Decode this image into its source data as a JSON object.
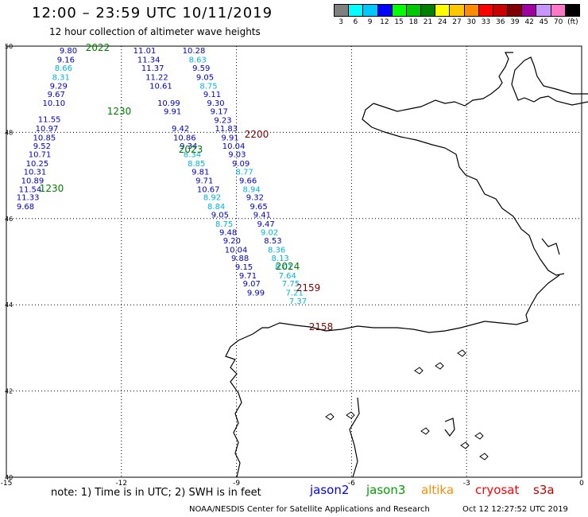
{
  "header": {
    "title": "12:00 – 23:59 UTC 10/11/2019",
    "subtitle": "12 hour collection of altimeter wave heights"
  },
  "color_scale": {
    "labels": [
      "3",
      "6",
      "9",
      "12",
      "15",
      "18",
      "21",
      "24",
      "27",
      "30",
      "33",
      "36",
      "39",
      "42",
      "45",
      "70",
      "(ft)"
    ],
    "colors": [
      "#808080",
      "#00ffff",
      "#00c8ff",
      "#0000ff",
      "#00ff00",
      "#00c800",
      "#008000",
      "#ffff00",
      "#ffc800",
      "#ff8c00",
      "#ff0000",
      "#c80000",
      "#800000",
      "#a000a0",
      "#c896ff",
      "#ff78c8",
      "#000000"
    ]
  },
  "axes": {
    "lon_labels": [
      "-15",
      "-12",
      "-9",
      "-6",
      "-3",
      "0"
    ],
    "lat_labels": [
      "50",
      "48",
      "46",
      "44",
      "42",
      "40"
    ]
  },
  "tracks": {
    "jason3_a": {
      "time_label": "2022",
      "points": [
        {
          "v": "9.80",
          "lat": 49.91,
          "c": "#0000c8"
        },
        {
          "v": "9.16",
          "lat": 49.7,
          "c": "#0000c8"
        },
        {
          "v": "8.66",
          "lat": 49.5,
          "c": "#00b4dc"
        },
        {
          "v": "8.31",
          "lat": 49.29,
          "c": "#00b4dc"
        },
        {
          "v": "9.29",
          "lat": 49.09,
          "c": "#0000c8"
        },
        {
          "v": "9.67",
          "lat": 48.89,
          "c": "#0000c8"
        },
        {
          "v": "10.10",
          "lat": 48.69,
          "c": "#0000c8"
        },
        {
          "v": "11.55",
          "lat": 48.31,
          "c": "#0000c8"
        },
        {
          "v": "10.97",
          "lat": 48.1,
          "c": "#0000c8"
        },
        {
          "v": "10.85",
          "lat": 47.89,
          "c": "#0000c8"
        },
        {
          "v": "9.52",
          "lat": 47.69,
          "c": "#0000c8"
        },
        {
          "v": "10.71",
          "lat": 47.5,
          "c": "#0000c8"
        },
        {
          "v": "10.25",
          "lat": 47.29,
          "c": "#0000c8"
        },
        {
          "v": "10.31",
          "lat": 47.09,
          "c": "#0000c8"
        },
        {
          "v": "10.89",
          "lat": 46.89,
          "c": "#0000c8"
        },
        {
          "v": "11.54",
          "lat": 46.69,
          "c": "#0000c8"
        },
        {
          "v": "11.33",
          "lat": 46.5,
          "c": "#0000c8"
        },
        {
          "v": "9.68",
          "lat": 46.29,
          "c": "#0000c8"
        }
      ],
      "end_label": "1230"
    },
    "jason3_b": {
      "time_label": "2023",
      "points": [
        {
          "v": "11.01",
          "lat": 49.91,
          "c": "#0000c8"
        },
        {
          "v": "11.34",
          "lat": 49.7,
          "c": "#0000c8"
        },
        {
          "v": "11.37",
          "lat": 49.5,
          "c": "#0000c8"
        },
        {
          "v": "11.22",
          "lat": 49.29,
          "c": "#0000c8"
        },
        {
          "v": "10.61",
          "lat": 49.09,
          "c": "#0000c8"
        },
        {
          "v": "10.99",
          "lat": 48.69,
          "c": "#0000c8"
        },
        {
          "v": "9.91",
          "lat": 48.5,
          "c": "#0000c8"
        },
        {
          "v": "9.42",
          "lat": 48.1,
          "c": "#0000c8"
        },
        {
          "v": "10.86",
          "lat": 47.89,
          "c": "#0000c8"
        },
        {
          "v": "9.34",
          "lat": 47.69,
          "c": "#0000c8"
        },
        {
          "v": "8.34",
          "lat": 47.5,
          "c": "#00b4dc"
        },
        {
          "v": "8.85",
          "lat": 47.29,
          "c": "#00b4dc"
        },
        {
          "v": "9.81",
          "lat": 47.09,
          "c": "#0000c8"
        },
        {
          "v": "9.71",
          "lat": 46.89,
          "c": "#0000c8"
        },
        {
          "v": "10.67",
          "lat": 46.69,
          "c": "#0000c8"
        },
        {
          "v": "8.92",
          "lat": 46.5,
          "c": "#00b4dc"
        },
        {
          "v": "8.84",
          "lat": 46.29,
          "c": "#00b4dc"
        },
        {
          "v": "9.05",
          "lat": 46.1,
          "c": "#0000c8"
        },
        {
          "v": "8.75",
          "lat": 45.89,
          "c": "#00b4dc"
        },
        {
          "v": "9.48",
          "lat": 45.69,
          "c": "#0000c8"
        },
        {
          "v": "9.20",
          "lat": 45.5,
          "c": "#0000c8"
        },
        {
          "v": "10.04",
          "lat": 45.29,
          "c": "#0000c8"
        },
        {
          "v": "9.88",
          "lat": 45.09,
          "c": "#0000c8"
        },
        {
          "v": "9.15",
          "lat": 44.89,
          "c": "#0000c8"
        },
        {
          "v": "9.71",
          "lat": 44.69,
          "c": "#0000c8"
        },
        {
          "v": "9.07",
          "lat": 44.5,
          "c": "#0000c8"
        },
        {
          "v": "9.99",
          "lat": 44.29,
          "c": "#0000c8"
        }
      ],
      "mid_label": "1230"
    },
    "jason2": {
      "time_label": "2200",
      "points": [
        {
          "v": "10.28",
          "lat": 49.91,
          "c": "#0000c8"
        },
        {
          "v": "8.63",
          "lat": 49.7,
          "c": "#00b4dc"
        },
        {
          "v": "9.59",
          "lat": 49.5,
          "c": "#0000c8"
        },
        {
          "v": "9.05",
          "lat": 49.29,
          "c": "#0000c8"
        },
        {
          "v": "8.75",
          "lat": 49.09,
          "c": "#00b4dc"
        },
        {
          "v": "9.11",
          "lat": 48.89,
          "c": "#0000c8"
        },
        {
          "v": "9.30",
          "lat": 48.69,
          "c": "#0000c8"
        },
        {
          "v": "9.17",
          "lat": 48.5,
          "c": "#0000c8"
        },
        {
          "v": "9.23",
          "lat": 48.29,
          "c": "#0000c8"
        },
        {
          "v": "11.83",
          "lat": 48.1,
          "c": "#0000c8"
        },
        {
          "v": "9.91",
          "lat": 47.89,
          "c": "#0000c8"
        },
        {
          "v": "10.04",
          "lat": 47.69,
          "c": "#0000c8"
        },
        {
          "v": "9.03",
          "lat": 47.5,
          "c": "#0000c8"
        },
        {
          "v": "9.09",
          "lat": 47.29,
          "c": "#0000c8"
        },
        {
          "v": "8.77",
          "lat": 47.09,
          "c": "#00b4dc"
        },
        {
          "v": "9.66",
          "lat": 46.89,
          "c": "#0000c8"
        },
        {
          "v": "8.94",
          "lat": 46.69,
          "c": "#00b4dc"
        },
        {
          "v": "9.32",
          "lat": 46.5,
          "c": "#0000c8"
        },
        {
          "v": "9.65",
          "lat": 46.29,
          "c": "#0000c8"
        },
        {
          "v": "9.41",
          "lat": 46.1,
          "c": "#0000c8"
        },
        {
          "v": "9.47",
          "lat": 45.89,
          "c": "#0000c8"
        },
        {
          "v": "9.02",
          "lat": 45.69,
          "c": "#00b4dc"
        },
        {
          "v": "8.53",
          "lat": 45.5,
          "c": "#0000c8"
        },
        {
          "v": "8.36",
          "lat": 45.29,
          "c": "#00b4dc"
        },
        {
          "v": "8.13",
          "lat": 45.09,
          "c": "#00b4dc"
        },
        {
          "v": "8.01",
          "lat": 44.89,
          "c": "#00b4dc"
        },
        {
          "v": "7.64",
          "lat": 44.69,
          "c": "#00b4dc"
        },
        {
          "v": "7.75",
          "lat": 44.5,
          "c": "#00b4dc"
        },
        {
          "v": "7.21",
          "lat": 44.29,
          "c": "#00b4dc"
        },
        {
          "v": "7.37",
          "lat": 44.1,
          "c": "#00b4dc"
        }
      ]
    },
    "other_labels": [
      {
        "text": "2024",
        "c": "#008000"
      },
      {
        "text": "2159",
        "c": "#800000"
      },
      {
        "text": "2158",
        "c": "#800000"
      }
    ]
  },
  "footer": {
    "note": "note:  1) Time is in UTC;  2) SWH is in feet",
    "legend": [
      {
        "text": "jason2",
        "color": "#0000ff"
      },
      {
        "text": "jason3",
        "color": "#00a000"
      },
      {
        "text": "altika",
        "color": "#ff8c00"
      },
      {
        "text": "cryosat",
        "color": "#ff0000"
      },
      {
        "text": "s3a",
        "color": "#c00000"
      }
    ],
    "credit": "NOAA/NESDIS Center for Satellite Applications and Research",
    "timestamp": "Oct 12 12:27:52 UTC 2019"
  }
}
